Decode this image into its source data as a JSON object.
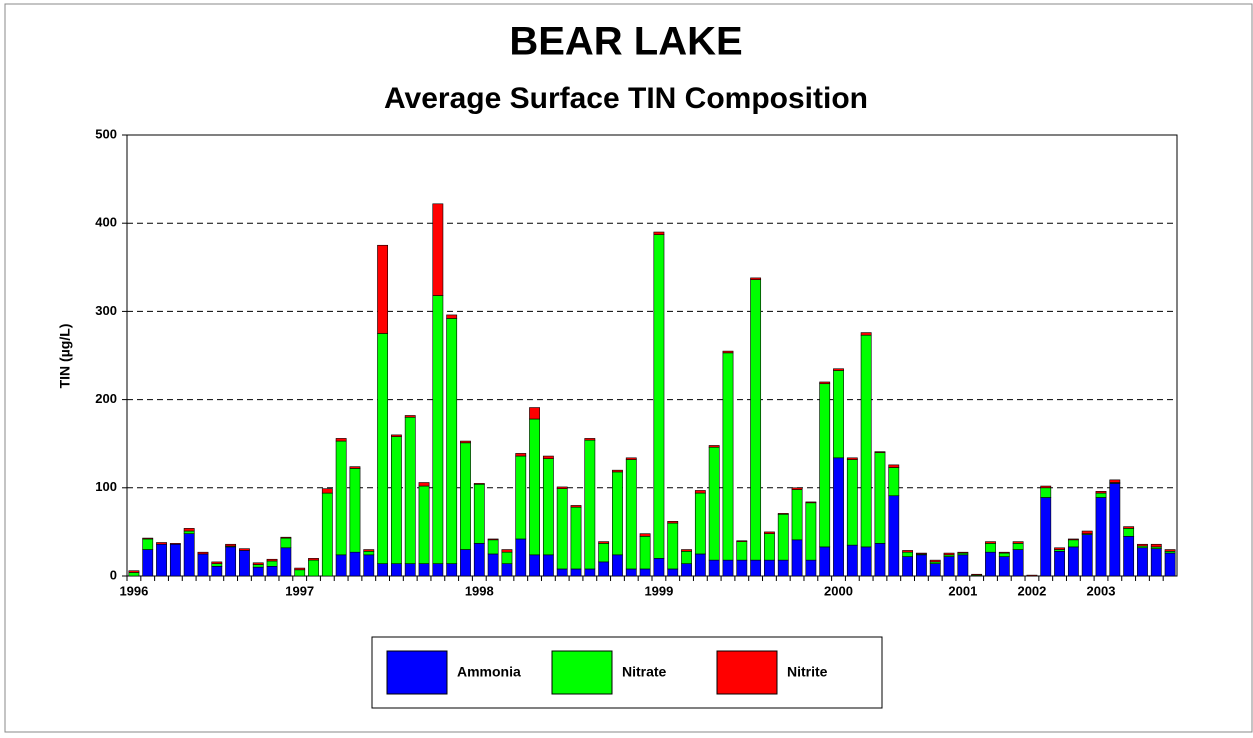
{
  "chart_data": {
    "type": "stacked-bar",
    "title": "BEAR LAKE",
    "subtitle": "Average Surface TIN Composition",
    "y_label": "TIN (µg/L)",
    "categories": [
      "1996",
      null,
      null,
      null,
      null,
      null,
      null,
      null,
      null,
      null,
      null,
      null,
      "1997",
      null,
      null,
      null,
      null,
      null,
      null,
      null,
      null,
      null,
      null,
      null,
      null,
      "1998",
      null,
      null,
      null,
      null,
      null,
      null,
      null,
      null,
      null,
      null,
      null,
      null,
      "1999",
      null,
      null,
      null,
      null,
      null,
      null,
      null,
      null,
      null,
      null,
      null,
      null,
      "2000",
      null,
      null,
      null,
      null,
      null,
      null,
      null,
      null,
      "2001",
      null,
      null,
      null,
      null,
      "2002",
      null,
      null,
      null,
      null,
      "2003",
      null,
      null,
      null,
      null,
      null
    ],
    "series": [
      {
        "name": "Ammonia",
        "color": "#0000ff",
        "values": [
          0,
          30,
          36,
          36,
          48,
          25,
          11,
          33,
          29,
          10,
          11,
          32,
          0,
          0,
          0,
          24,
          27,
          24,
          14,
          14,
          14,
          14,
          14,
          14,
          30,
          37,
          25,
          14,
          42,
          24,
          24,
          8,
          8,
          8,
          16,
          24,
          8,
          8,
          20,
          8,
          14,
          25,
          18,
          18,
          18,
          18,
          18,
          18,
          41,
          18,
          33,
          134,
          35,
          33,
          37,
          91,
          22,
          24,
          14,
          22,
          24,
          0,
          27,
          22,
          30,
          0,
          89,
          28,
          33,
          47,
          89,
          105,
          45,
          32,
          31,
          26
        ]
      },
      {
        "name": "Nitrate",
        "color": "#00ff00",
        "values": [
          4,
          12,
          0,
          0,
          3,
          0,
          3,
          1,
          0,
          3,
          6,
          11,
          7,
          18,
          94,
          129,
          95,
          4,
          261,
          144,
          166,
          88,
          304,
          278,
          121,
          67,
          16,
          13,
          94,
          154,
          109,
          91,
          70,
          146,
          21,
          94,
          124,
          37,
          367,
          52,
          14,
          69,
          128,
          235,
          21,
          318,
          30,
          52,
          57,
          65,
          185,
          99,
          97,
          240,
          103,
          32,
          5,
          1,
          2,
          2,
          2,
          1,
          10,
          4,
          7,
          0,
          11,
          2,
          8,
          1,
          5,
          1,
          9,
          2,
          2,
          2
        ]
      },
      {
        "name": "Nitrite",
        "color": "#ff0000",
        "values": [
          2,
          1,
          2,
          1,
          3,
          2,
          2,
          2,
          2,
          2,
          2,
          1,
          2,
          2,
          5,
          3,
          2,
          2,
          100,
          2,
          2,
          4,
          104,
          4,
          2,
          1,
          1,
          3,
          3,
          13,
          3,
          2,
          2,
          2,
          2,
          2,
          2,
          3,
          3,
          2,
          2,
          3,
          2,
          2,
          1,
          2,
          2,
          1,
          2,
          1,
          2,
          2,
          2,
          3,
          1,
          3,
          2,
          1,
          2,
          2,
          1,
          1,
          2,
          1,
          2,
          1,
          2,
          2,
          1,
          3,
          2,
          3,
          2,
          2,
          3,
          2
        ]
      }
    ],
    "ylim": [
      0,
      500
    ],
    "yticks": [
      0,
      100,
      200,
      300,
      400,
      500
    ],
    "grid": true,
    "legend": "bottom"
  }
}
